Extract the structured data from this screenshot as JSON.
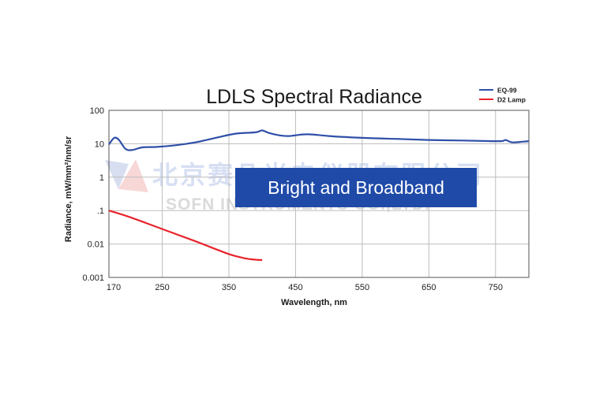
{
  "chart_data": {
    "type": "line",
    "title": "LDLS Spectral Radiance",
    "xlabel": "Wavelength, nm",
    "ylabel": "Radiance, mW/mm²/nm/sr",
    "x_scale": "linear",
    "y_scale": "log",
    "xlim": [
      170,
      800
    ],
    "ylim": [
      0.001,
      100
    ],
    "x_ticks": [
      170,
      250,
      350,
      450,
      550,
      650,
      750
    ],
    "y_ticks": [
      100,
      10,
      1,
      0.1,
      0.01,
      0.001
    ],
    "y_tick_labels": [
      "100",
      "10",
      "1",
      ".1",
      "0.01",
      "0.001"
    ],
    "grid": true,
    "legend_position": "top-right",
    "annotation": "Bright and Broadband",
    "watermark": {
      "line1": "北京赛凡光电仪器有限公司",
      "line2": "SOFN INSTRUMENTS CO.,LTD."
    },
    "series": [
      {
        "name": "EQ-99",
        "color": "#2f4fa8",
        "x": [
          170,
          178,
          185,
          195,
          205,
          220,
          240,
          270,
          300,
          330,
          360,
          390,
          400,
          410,
          425,
          440,
          460,
          475,
          500,
          550,
          600,
          650,
          700,
          740,
          760,
          765,
          775,
          790,
          800
        ],
        "y": [
          9.5,
          15,
          13,
          7,
          6.5,
          7.8,
          8,
          9,
          11,
          15,
          20,
          22,
          25,
          21,
          18,
          17,
          19,
          19,
          17,
          15,
          14,
          13,
          12.5,
          12,
          12,
          13,
          11,
          11.5,
          12
        ]
      },
      {
        "name": "D2 Lamp",
        "color": "#e8242c",
        "x": [
          170,
          200,
          250,
          300,
          350,
          375,
          390,
          400
        ],
        "y": [
          0.1,
          0.065,
          0.028,
          0.012,
          0.005,
          0.0037,
          0.0034,
          0.0033
        ]
      }
    ]
  }
}
